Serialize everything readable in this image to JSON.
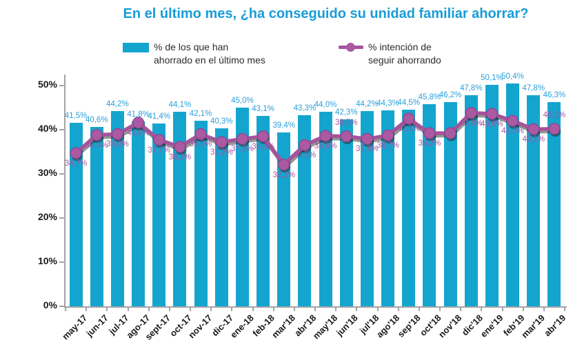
{
  "title": "En el último mes, ¿ha conseguido su unidad familiar ahorrar?",
  "legend": {
    "bars": {
      "lines": [
        "% de los que han",
        "ahorrado en el último mes"
      ]
    },
    "line": {
      "lines": [
        "% intención de",
        "seguir ahorrando"
      ]
    }
  },
  "colors": {
    "bar": "#14A5CF",
    "bar_label": "#2C9FD9",
    "title": "#189CD8",
    "line": "#A4539C",
    "marker_fill": "#AB59A2",
    "marker_stroke": "#8D4487",
    "shadow": "rgba(25,25,25,0.45)",
    "axis": "#A3A3A3",
    "tick_text": "#1A1A1A",
    "legend_text": "#2B2B2B"
  },
  "chart_data": {
    "type": "bar+line",
    "categories": [
      "may-17",
      "jun-17",
      "jul-17",
      "ago-17",
      "sept-17",
      "oct-17",
      "nov-17",
      "dic-17",
      "ene-18",
      "feb-18",
      "mar'18",
      "abr'18",
      "may'18",
      "jun'18",
      "jul'18",
      "ago'18",
      "sep'18",
      "oct'18",
      "nov'18",
      "dic'18",
      "ene'19",
      "feb'19",
      "mar'19",
      "abr'19"
    ],
    "series": [
      {
        "name": "% de los que han ahorrado en el último mes",
        "type": "bar",
        "values": [
          41.5,
          40.6,
          44.2,
          41.8,
          41.4,
          44.1,
          42.1,
          40.3,
          45.0,
          43.1,
          39.4,
          43.3,
          44.0,
          42.3,
          44.2,
          44.3,
          44.5,
          45.8,
          46.2,
          47.8,
          50.1,
          50.4,
          47.8,
          46.3
        ],
        "labels": [
          "41,5%",
          "40,6%",
          "44,2%",
          "41,8%",
          "41,4%",
          "44,1%",
          "42,1%",
          "40,3%",
          "45,0%",
          "43,1%",
          "39,4%",
          "43,3%",
          "44,0%",
          "42,3%",
          "44,2%",
          "44,3%",
          "44,5%",
          "45,8%",
          "46,2%",
          "47,8%",
          "50,1%",
          "50,4%",
          "47,8%",
          "46,3%"
        ]
      },
      {
        "name": "% intención de seguir ahorrando",
        "type": "line",
        "values": [
          34.7,
          38.8,
          39.0,
          41.6,
          37.7,
          36.1,
          39.0,
          37.2,
          37.9,
          38.5,
          32.1,
          36.5,
          38.6,
          38.5,
          37.9,
          38.7,
          42.5,
          39.2,
          39.2,
          43.8,
          43.6,
          42.0,
          40.1,
          40.2
        ],
        "labels": [
          "34,7%",
          "38,8%",
          "39,0%",
          "41,6%",
          "37,7%",
          "36,1%",
          "39,0%",
          "37,2%",
          "37,9%",
          "38,5%",
          "32,1%",
          "36,5%",
          "38,6%",
          "38,5%",
          "37,9%",
          "38,7%",
          "42,5%",
          "39,2%",
          "",
          "43,8%",
          "43,6%",
          "42,0%",
          "40,1%",
          "40,2%"
        ],
        "label_above_indices": [
          13,
          23
        ]
      }
    ],
    "ylim": [
      0,
      50
    ],
    "yticks": [
      {
        "value": 0,
        "label": "0%"
      },
      {
        "value": 10,
        "label": "10%"
      },
      {
        "value": 20,
        "label": "20%"
      },
      {
        "value": 30,
        "label": "30%"
      },
      {
        "value": 40,
        "label": "40%"
      },
      {
        "value": 50,
        "label": "50%"
      }
    ],
    "grid": false,
    "legend_position": "top"
  }
}
